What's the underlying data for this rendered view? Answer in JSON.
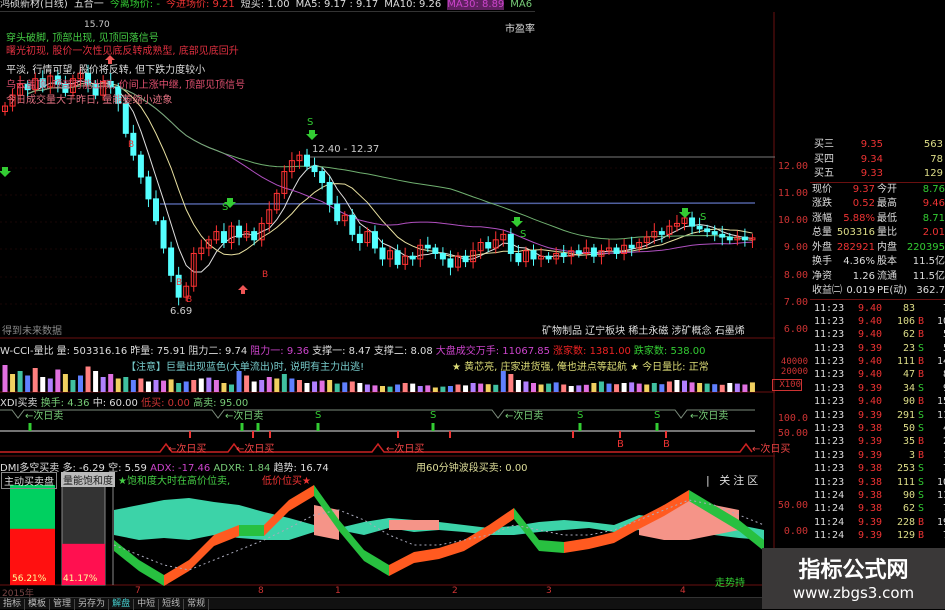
{
  "header": {
    "stock": "鸿硕新材(日线)",
    "mode": "五合一",
    "exit_price": "今离场价: -",
    "entry_price": "今进场价: 9.21",
    "short_buy": "短买: 1.00",
    "ma5": "MA5: 9.17 : 9.17",
    "ma10": "MA10: 9.26",
    "ma30": "MA30: 8.89",
    "ma60": "MA6"
  },
  "main": {
    "pe_label": "市盈率",
    "notes": [
      "穿头破脚, 顶部出现, 见顶回落信号",
      "曙光初现, 股价一次性见底反转成熟型, 底部见底回升",
      "平淡, 行情可望, 股价将反转, 但下跌力度较小",
      "乌云盖顶, 顶部可能出现, 价间上涨中继, 顶部见顶信号",
      "今日成交量大于昨日, 量能萎缩小迹象"
    ],
    "high_label": "15.70",
    "range_label": "12.40 - 12.37",
    "low_label": "6.69",
    "future_label": "得到未来数据",
    "sectors": "矿物制品  辽宁板块  稀土永磁  涉矿概念  石墨烯",
    "price_axis": [
      "12.00",
      "11.00",
      "10.00",
      "9.00",
      "8.00",
      "7.00",
      "6.00"
    ],
    "signal_S": "S",
    "signal_B": "B"
  },
  "volume": {
    "header": [
      "W-CCI-量比",
      "量: 503316.16",
      "昨量: 75.91",
      "阻力二: 9.74",
      "阻力一: 9.36",
      "支撑一: 8.47",
      "支撑二: 8.08",
      "大盘成交万手: 11067.85",
      "涨家数: 1381.00",
      "跌家数: 538.00"
    ],
    "notice": "【注意】巨量出现蓝色(大单流出)时, 说明有主力出逃!",
    "tip": "★ 黄芯亮, 庄家进货强, 俺也进点等起航 ★ 今日量比: 正常",
    "axis": [
      "40000",
      "20000",
      "X100"
    ]
  },
  "xdi": {
    "header": [
      "XDI买卖",
      "换手: 4.36",
      "中: 60.00",
      "低买: 0.00",
      "高卖: 95.00"
    ],
    "sell_label": "←次日卖",
    "buy_label": "←次日买",
    "s": "S",
    "b": "B",
    "axis": [
      "100.0",
      "50.00"
    ]
  },
  "dmi": {
    "header": [
      "DMI多空买卖",
      "多: -6.29",
      "空: 5.59",
      "ADX: -17.46",
      "ADXR: 1.84",
      "趋势: 16.74"
    ],
    "band60": "用60分钟波段买卖: 0.00",
    "box1_title": "主动买卖盘",
    "box2_title": "量能饱和度",
    "box1_pct": "56.21%",
    "box2_pct": "41.17%",
    "box1_value": 56.21,
    "box2_value": 41.17,
    "hint": "★饱和度大时在高价位卖,",
    "hint2": "低价位买★",
    "focus": "关注区",
    "trend": "走势持",
    "axis": [
      "50.00",
      "0.00"
    ]
  },
  "date_axis": [
    "2015年",
    "7",
    "8",
    "1",
    "2",
    "3",
    "4"
  ],
  "tabs": [
    "指标",
    "模板",
    "管理",
    "另存为",
    "解盘",
    "中短",
    "短线",
    "常规"
  ],
  "quote": {
    "book": [
      [
        "买三",
        "9.35",
        "563"
      ],
      [
        "买四",
        "9.34",
        "78"
      ],
      [
        "买五",
        "9.33",
        "129"
      ]
    ],
    "stats": [
      [
        "现价",
        "9.37",
        "今开",
        "8.76"
      ],
      [
        "涨跌",
        "0.52",
        "最高",
        "9.46"
      ],
      [
        "涨幅",
        "5.88%",
        "最低",
        "8.71"
      ],
      [
        "总量",
        "503316",
        "量比",
        "2.01"
      ],
      [
        "外盘",
        "282921",
        "内盘",
        "220395"
      ],
      [
        "换手",
        "4.36%",
        "股本",
        "11.5亿"
      ],
      [
        "净资",
        "1.26",
        "流通",
        "11.5亿"
      ],
      [
        "收益㈡",
        "0.019",
        "PE(动)",
        "362.7"
      ]
    ],
    "ticks": [
      [
        "11:23",
        "9.40",
        "83",
        "",
        "7"
      ],
      [
        "11:23",
        "9.40",
        "106",
        "B",
        "10"
      ],
      [
        "11:23",
        "9.40",
        "62",
        "B",
        "5"
      ],
      [
        "11:23",
        "9.39",
        "23",
        "S",
        "5"
      ],
      [
        "11:23",
        "9.40",
        "111",
        "B",
        "14"
      ],
      [
        "11:23",
        "9.40",
        "47",
        "B",
        "8"
      ],
      [
        "11:23",
        "9.39",
        "34",
        "S",
        "9"
      ],
      [
        "11:23",
        "9.40",
        "90",
        "B",
        "15"
      ],
      [
        "11:23",
        "9.39",
        "291",
        "S",
        "11"
      ],
      [
        "11:23",
        "9.38",
        "50",
        "S",
        "4"
      ],
      [
        "11:23",
        "9.39",
        "35",
        "B",
        "2"
      ],
      [
        "11:23",
        "9.39",
        "3",
        "B",
        "1"
      ],
      [
        "11:23",
        "9.38",
        "253",
        "S",
        "7"
      ],
      [
        "11:23",
        "9.38",
        "111",
        "S",
        "10"
      ],
      [
        "11:24",
        "9.38",
        "90",
        "S",
        "11"
      ],
      [
        "11:24",
        "9.38",
        "62",
        "S",
        "7"
      ],
      [
        "11:24",
        "9.39",
        "228",
        "B",
        "19"
      ],
      [
        "11:24",
        "9.39",
        "129",
        "B",
        "7"
      ]
    ]
  },
  "watermark": {
    "name": "指标公式网",
    "url": "www.zbgs3.com"
  },
  "colors": {
    "up": "#ff3333",
    "down": "#54ffff",
    "ma5": "#e0e0e0",
    "ma10": "#e8e0a0",
    "ma30": "#b050c0",
    "ma60": "#70b070",
    "teal": "#3cd3a8",
    "orange": "#ff5a20",
    "green": "#28c040",
    "pink": "#f59488"
  },
  "chart_data": {
    "type": "candlestick",
    "closes": [
      14.2,
      14.6,
      15.0,
      14.8,
      15.2,
      14.9,
      15.3,
      15.0,
      14.7,
      15.2,
      15.4,
      15.0,
      14.6,
      15.1,
      14.9,
      14.3,
      13.2,
      12.4,
      11.6,
      10.8,
      10.0,
      9.0,
      8.0,
      7.2,
      7.6,
      8.8,
      9.0,
      9.3,
      9.6,
      9.2,
      9.8,
      9.4,
      9.6,
      9.3,
      9.9,
      10.4,
      11.0,
      11.8,
      12.2,
      12.4,
      12.0,
      11.8,
      11.4,
      10.6,
      10.0,
      10.2,
      9.5,
      9.2,
      9.6,
      9.0,
      8.6,
      8.9,
      8.4,
      8.7,
      8.6,
      9.1,
      9.0,
      8.8,
      8.6,
      8.3,
      8.7,
      8.5,
      8.9,
      9.2,
      9.0,
      9.3,
      9.5,
      8.8,
      8.5,
      8.9,
      8.6,
      8.7,
      8.6,
      8.8,
      8.7,
      8.9,
      8.8,
      9.0,
      8.7,
      8.9,
      9.0,
      8.8,
      9.1,
      9.0,
      9.2,
      9.4,
      9.6,
      9.5,
      9.8,
      9.9,
      10.1,
      9.8,
      9.7,
      9.6,
      9.5,
      9.4,
      9.3,
      9.4,
      9.3,
      9.37
    ],
    "volumes": [
      90,
      60,
      70,
      55,
      80,
      50,
      45,
      75,
      60,
      40,
      55,
      85,
      70,
      50,
      60,
      45,
      50,
      40,
      45,
      35,
      40,
      38,
      42,
      30,
      35,
      40,
      45,
      48,
      40,
      30,
      25,
      70,
      55,
      35,
      40,
      50,
      45,
      60,
      45,
      40,
      30,
      35,
      38,
      40,
      28,
      32,
      35,
      30,
      25,
      22,
      20,
      18,
      25,
      30,
      28,
      20,
      22,
      15,
      18,
      20,
      25,
      22,
      30,
      28,
      26,
      24,
      70,
      60,
      40,
      35,
      30,
      25,
      28,
      32,
      25,
      20,
      22,
      24,
      30,
      35,
      28,
      26,
      30,
      32,
      28,
      25,
      30,
      26,
      35,
      40,
      38,
      32,
      30,
      28,
      26,
      24,
      30,
      28,
      25,
      32
    ],
    "dmi": {
      "teal_top": [
        75,
        80,
        85,
        87,
        83,
        80,
        73,
        67,
        60,
        57,
        63,
        67,
        65,
        63,
        60,
        57,
        59,
        63,
        65,
        63,
        60,
        70,
        67,
        65,
        63,
        60,
        55
      ],
      "teal_bottom": [
        50,
        45,
        47,
        45,
        50,
        47,
        45,
        45,
        53,
        55,
        50,
        57,
        53,
        55,
        53,
        50,
        50,
        53,
        55,
        57,
        53,
        55,
        60,
        55,
        50,
        47,
        45
      ],
      "trend": [
        45,
        25,
        10,
        25,
        50,
        60,
        60,
        85,
        100,
        65,
        35,
        20,
        33,
        37,
        45,
        60,
        77,
        45,
        43,
        47,
        53,
        67,
        80,
        95,
        80,
        65,
        45
      ],
      "pink_top": [
        null,
        null,
        null,
        null,
        null,
        null,
        null,
        null,
        80,
        75,
        null,
        65,
        65,
        65,
        null,
        null,
        null,
        null,
        null,
        null,
        null,
        65,
        80,
        85,
        80,
        75,
        null
      ],
      "pink_bottom": [
        null,
        null,
        null,
        null,
        null,
        null,
        null,
        null,
        50,
        45,
        null,
        55,
        55,
        55,
        null,
        null,
        null,
        null,
        null,
        null,
        null,
        50,
        45,
        45,
        50,
        55,
        null
      ],
      "dotted": [
        40,
        30,
        20,
        15,
        25,
        35,
        45,
        57,
        70,
        75,
        65,
        50,
        40,
        40,
        45,
        50,
        60,
        55,
        50,
        50,
        55,
        65,
        75,
        85,
        80,
        70,
        60
      ]
    }
  }
}
